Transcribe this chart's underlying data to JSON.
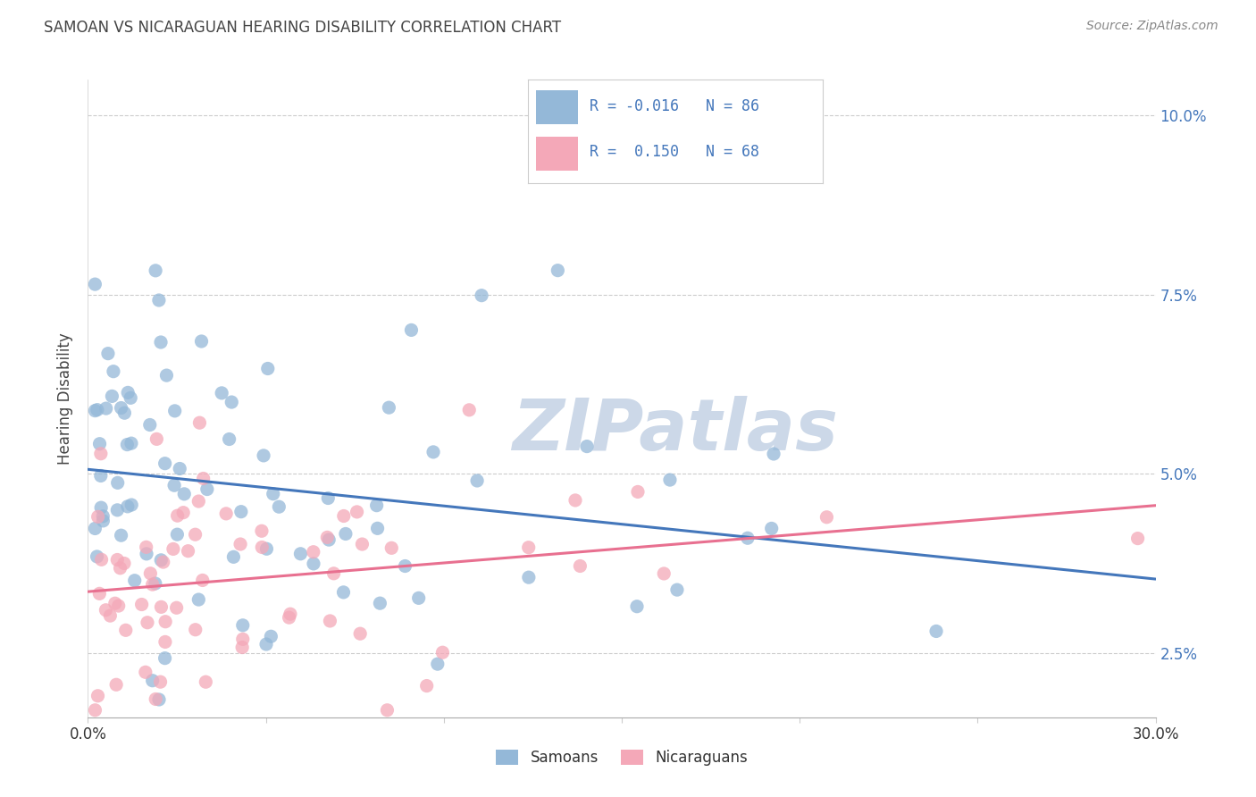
{
  "title": "SAMOAN VS NICARAGUAN HEARING DISABILITY CORRELATION CHART",
  "source": "Source: ZipAtlas.com",
  "ylabel": "Hearing Disability",
  "xlim": [
    0.0,
    0.3
  ],
  "ylim": [
    0.016,
    0.105
  ],
  "yticks": [
    0.025,
    0.05,
    0.075,
    0.1
  ],
  "ytick_labels": [
    "2.5%",
    "5.0%",
    "7.5%",
    "10.0%"
  ],
  "xticks": [
    0.0,
    0.05,
    0.1,
    0.15,
    0.2,
    0.25,
    0.3
  ],
  "xtick_labels": [
    "0.0%",
    "",
    "",
    "",
    "",
    "",
    "30.0%"
  ],
  "samoan_color": "#94b8d8",
  "nicaraguan_color": "#f4a8b8",
  "samoan_line_color": "#4477bb",
  "nicaraguan_line_color": "#e87090",
  "watermark": "ZIPatlas",
  "watermark_color": "#ccd8e8",
  "background_color": "#ffffff",
  "grid_color": "#cccccc",
  "title_color": "#444444",
  "source_color": "#888888",
  "legend_text_color": "#4477bb",
  "legend_label_color": "#333333"
}
